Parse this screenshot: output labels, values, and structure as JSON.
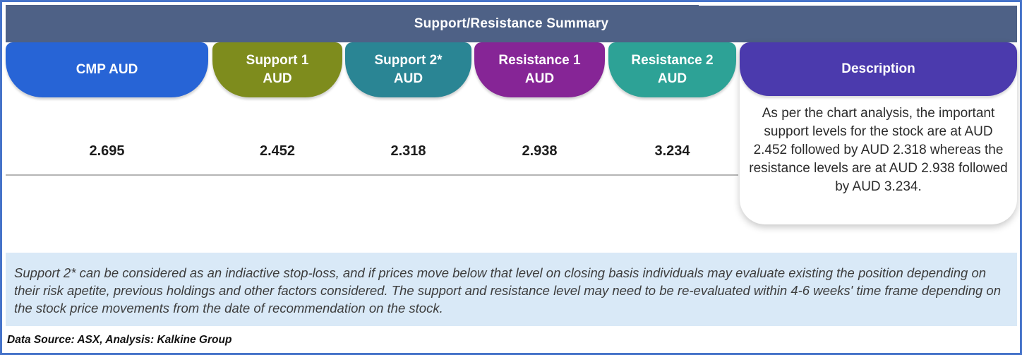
{
  "frame": {
    "border_color": "#4673c9"
  },
  "header": {
    "title": "Support/Resistance Summary",
    "bar_color": "#4e6186"
  },
  "columns": [
    {
      "id": "cmp",
      "label": "CMP AUD",
      "sublabel": "",
      "value": "2.695",
      "color": "#2764d6"
    },
    {
      "id": "support1",
      "label": "Support 1",
      "sublabel": "AUD",
      "value": "2.452",
      "color": "#7e8c1d"
    },
    {
      "id": "support2",
      "label": "Support 2*",
      "sublabel": "AUD",
      "value": "2.318",
      "color": "#2a8594"
    },
    {
      "id": "resistance1",
      "label": "Resistance 1",
      "sublabel": "AUD",
      "value": "2.938",
      "color": "#862596"
    },
    {
      "id": "resistance2",
      "label": "Resistance 2",
      "sublabel": "AUD",
      "value": "3.234",
      "color": "#2da296"
    }
  ],
  "description": {
    "header": "Description",
    "header_color": "#4b3aad",
    "text": "As per the chart analysis, the important support levels for the stock are at AUD 2.452 followed by AUD 2.318 whereas the resistance levels are at AUD 2.938 followed by AUD 3.234."
  },
  "note": {
    "bg_color": "#d9e9f7",
    "text": "Support 2* can be considered as an indiactive stop-loss, and if prices move below that level on closing basis individuals may evaluate existing the position depending on their risk apetite, previous holdings and other factors considered. The support and resistance level may need to be re-evaluated within 4-6 weeks' time frame depending on the stock price movements from  the date of recommendation on the stock."
  },
  "footer": {
    "text": "Data Source: ASX, Analysis: Kalkine Group"
  }
}
